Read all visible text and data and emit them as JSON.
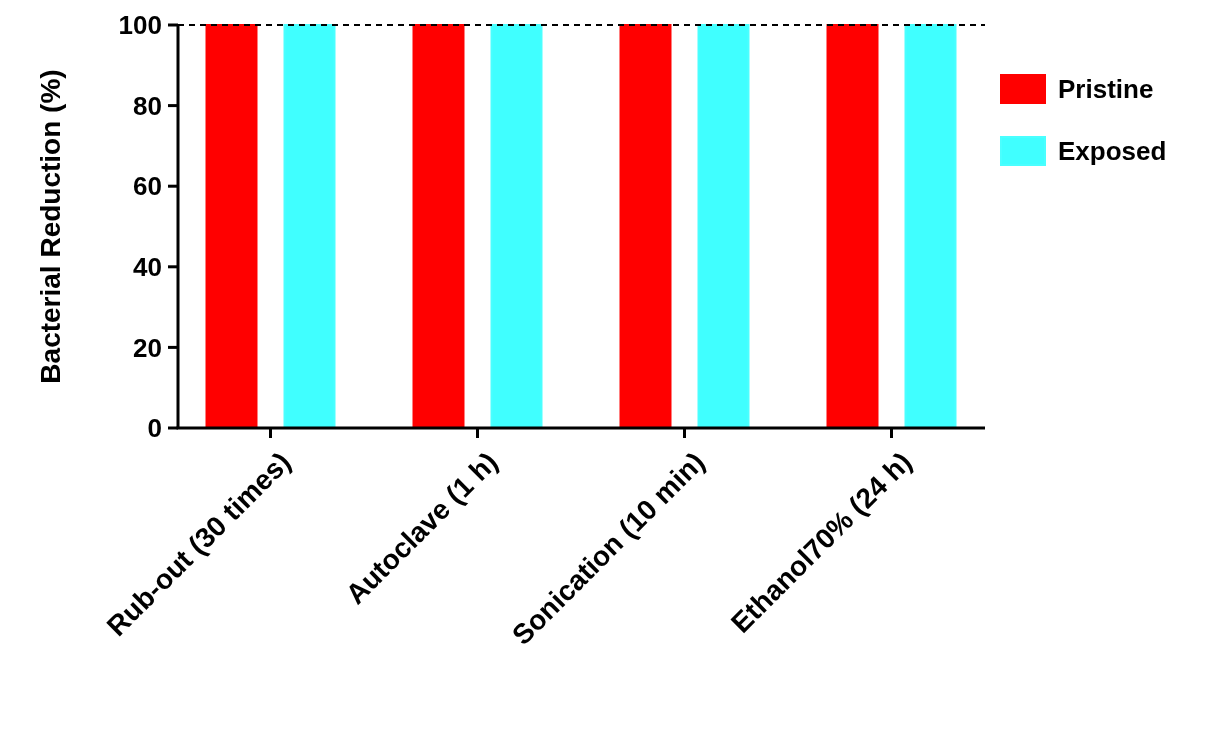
{
  "chart_data": {
    "type": "bar",
    "ylabel": "Bacterial Reduction (%)",
    "categories": [
      "Rub-out (30 times)",
      "Autoclave (1 h)",
      "Sonication (10 min)",
      "Ethanol70% (24 h)"
    ],
    "series": [
      {
        "name": "Pristine",
        "color": "#ff0000",
        "values": [
          100,
          100,
          100,
          100
        ]
      },
      {
        "name": "Exposed",
        "color": "#40ffff",
        "values": [
          100,
          100,
          100,
          100
        ]
      }
    ],
    "ylim": [
      0,
      100
    ],
    "yticks": [
      0,
      20,
      40,
      60,
      80,
      100
    ],
    "ref_lines": [
      {
        "axis": "y",
        "value": 100,
        "color": "#000000",
        "line_style": "dashed"
      }
    ],
    "legend": "right",
    "grid": false
  }
}
